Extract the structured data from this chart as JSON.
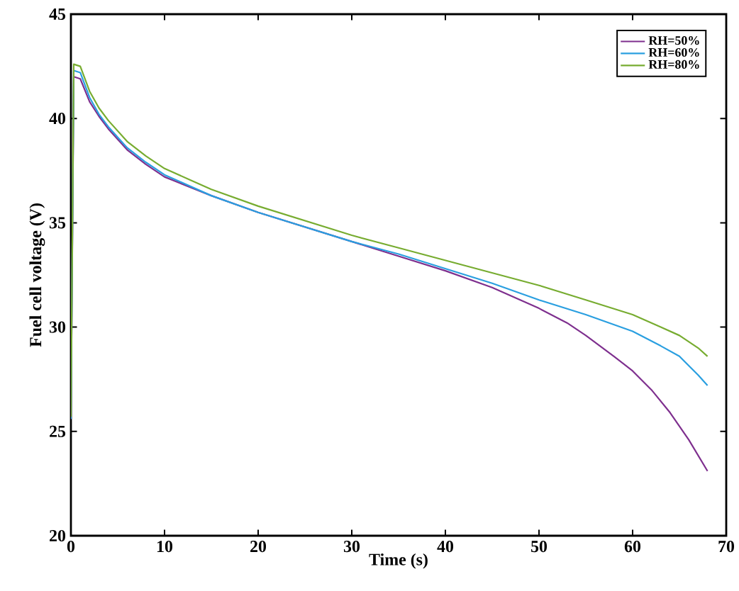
{
  "chart_data": {
    "type": "line",
    "xlabel": "Time (s)",
    "ylabel": "Fuel cell voltage (V)",
    "xlim": [
      0,
      70
    ],
    "ylim": [
      20,
      45
    ],
    "xticks": [
      0,
      10,
      20,
      30,
      40,
      50,
      60,
      70
    ],
    "yticks": [
      20,
      25,
      30,
      35,
      40,
      45
    ],
    "grid": false,
    "legend": "top right",
    "line_style": "solid",
    "marker": "none",
    "series": [
      {
        "name": "RH=50%",
        "color": "#7e2f8e",
        "x": [
          0,
          0.3,
          1,
          2,
          3,
          4,
          5,
          6,
          8,
          10,
          15,
          20,
          25,
          30,
          35,
          40,
          45,
          50,
          53,
          55,
          58,
          60,
          62,
          64,
          66,
          68
        ],
        "values": [
          25.6,
          42.0,
          41.9,
          40.8,
          40.1,
          39.5,
          39.0,
          38.5,
          37.8,
          37.2,
          36.3,
          35.5,
          34.8,
          34.1,
          33.4,
          32.7,
          31.9,
          30.9,
          30.2,
          29.6,
          28.6,
          27.9,
          27.0,
          25.9,
          24.6,
          23.1
        ]
      },
      {
        "name": "RH=60%",
        "color": "#2a9fe0",
        "x": [
          0,
          0.3,
          1,
          2,
          3,
          4,
          5,
          6,
          8,
          10,
          15,
          20,
          25,
          30,
          35,
          40,
          45,
          50,
          55,
          60,
          63,
          65,
          67,
          68
        ],
        "values": [
          25.6,
          42.3,
          42.2,
          41.0,
          40.2,
          39.6,
          39.1,
          38.6,
          37.9,
          37.3,
          36.3,
          35.5,
          34.8,
          34.1,
          33.5,
          32.8,
          32.1,
          31.3,
          30.6,
          29.8,
          29.1,
          28.6,
          27.7,
          27.2
        ]
      },
      {
        "name": "RH=80%",
        "color": "#77ac30",
        "x": [
          0,
          0.3,
          1,
          2,
          3,
          4,
          5,
          6,
          8,
          10,
          15,
          20,
          25,
          30,
          35,
          40,
          45,
          50,
          55,
          60,
          63,
          65,
          67,
          68
        ],
        "values": [
          25.7,
          42.6,
          42.5,
          41.3,
          40.5,
          39.9,
          39.4,
          38.9,
          38.2,
          37.6,
          36.6,
          35.8,
          35.1,
          34.4,
          33.8,
          33.2,
          32.6,
          32.0,
          31.3,
          30.6,
          30.0,
          29.6,
          29.0,
          28.6
        ]
      }
    ]
  }
}
